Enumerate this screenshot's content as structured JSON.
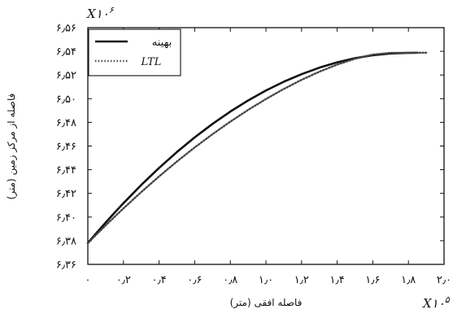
{
  "chart_data": {
    "type": "line",
    "title": "",
    "xlabel": "فاصله افقی (متر)",
    "ylabel": "فاصله از مرکز زمین (متر)",
    "x_multiplier": "X۱۰",
    "x_multiplier_exp": "۵",
    "y_multiplier": "X۱۰",
    "y_multiplier_exp": "۶",
    "xlim": [
      0,
      2.0
    ],
    "ylim": [
      6.36,
      6.56
    ],
    "x_ticks": [
      0,
      0.2,
      0.4,
      0.6,
      0.8,
      1.0,
      1.2,
      1.4,
      1.6,
      1.8,
      2.0
    ],
    "x_tick_labels": [
      "۰",
      "۰٫۲",
      "۰٫۴",
      "۰٫۶",
      "۰٫۸",
      "۱٫۰",
      "۱٫۲",
      "۱٫۴",
      "۱٫۶",
      "۱٫۸",
      "۲٫۰"
    ],
    "y_ticks": [
      6.36,
      6.38,
      6.4,
      6.42,
      6.44,
      6.46,
      6.48,
      6.5,
      6.52,
      6.54,
      6.56
    ],
    "y_tick_labels": [
      "۶٫۳۶",
      "۶٫۳۸",
      "۶٫۴۰",
      "۶٫۴۲",
      "۶٫۴۴",
      "۶٫۴۶",
      "۶٫۴۸",
      "۶٫۵۰",
      "۶٫۵۲",
      "۶٫۵۴",
      "۶٫۵۶"
    ],
    "grid": false,
    "legend_position": "top-left",
    "series": [
      {
        "name": "بهینه",
        "style": "solid",
        "color": "#111111",
        "x": [
          0,
          0.05,
          0.1,
          0.15,
          0.2,
          0.3,
          0.4,
          0.5,
          0.6,
          0.7,
          0.8,
          0.9,
          1.0,
          1.1,
          1.2,
          1.3,
          1.4,
          1.5,
          1.6,
          1.7,
          1.8,
          1.85
        ],
        "y": [
          6.378,
          6.3868,
          6.3953,
          6.4036,
          6.4117,
          6.4271,
          6.4415,
          6.4549,
          6.4673,
          6.4787,
          6.4891,
          6.4985,
          6.5069,
          6.5143,
          6.5207,
          6.5262,
          6.5307,
          6.5342,
          6.5367,
          6.5382,
          6.5387,
          6.5388
        ]
      },
      {
        "name": "LTL",
        "style": "dotted",
        "color": "#444444",
        "x": [
          0,
          0.05,
          0.1,
          0.15,
          0.2,
          0.3,
          0.4,
          0.5,
          0.6,
          0.7,
          0.8,
          0.9,
          1.0,
          1.1,
          1.2,
          1.3,
          1.4,
          1.5,
          1.6,
          1.7,
          1.8,
          1.9
        ],
        "y": [
          6.378,
          6.3855,
          6.3929,
          6.4002,
          6.4073,
          6.4211,
          6.4343,
          6.4469,
          6.4588,
          6.47,
          6.4806,
          6.4905,
          6.4997,
          6.5082,
          6.5159,
          6.5228,
          6.5288,
          6.5337,
          6.5373,
          6.5387,
          6.5388,
          6.5388
        ]
      }
    ]
  }
}
